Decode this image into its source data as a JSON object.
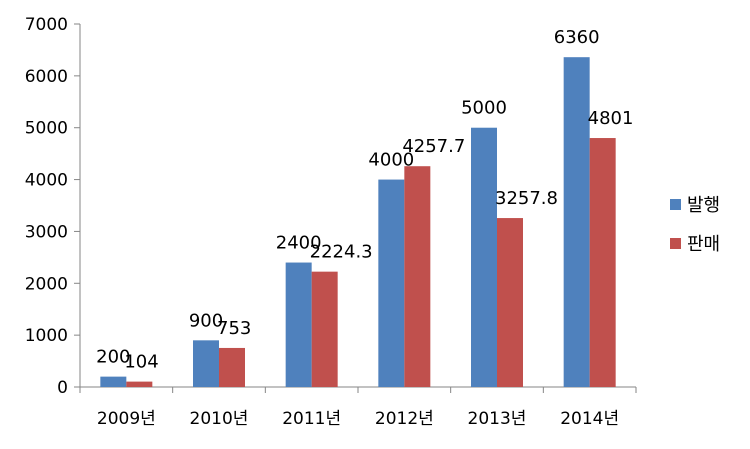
{
  "chart_data": {
    "type": "bar",
    "categories": [
      "2009년",
      "2010년",
      "2011년",
      "2012년",
      "2013년",
      "2014년"
    ],
    "series": [
      {
        "name": "발행",
        "color": "#4F81BD",
        "values": [
          200,
          900,
          2400,
          4000,
          5000,
          6360
        ],
        "labels": [
          "200",
          "900",
          "2400",
          "4000",
          "5000",
          "6360"
        ]
      },
      {
        "name": "판매",
        "color": "#C0504D",
        "values": [
          104,
          753,
          2224.3,
          4257.7,
          3257.8,
          4801
        ],
        "labels": [
          "104",
          "753",
          "2224.3",
          "4257.7",
          "3257.8",
          "4801"
        ]
      }
    ],
    "ylim": [
      0,
      7000
    ],
    "yticks": [
      "0",
      "1000",
      "2000",
      "3000",
      "4000",
      "5000",
      "6000",
      "7000"
    ],
    "grid": false,
    "legend": "right"
  }
}
